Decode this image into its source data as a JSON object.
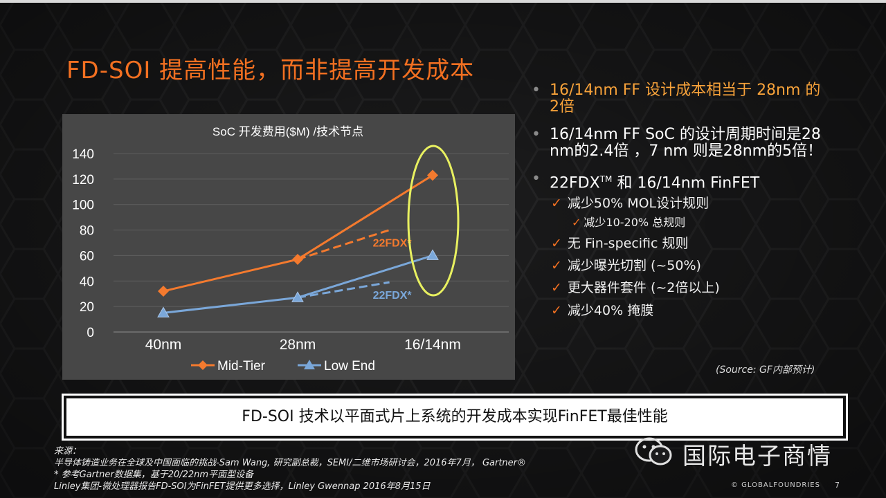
{
  "slide": {
    "title": "FD-SOI 提高性能，而非提高开发成本",
    "source_note": "(Source: GF内部预计)",
    "banner": "FD-SOI 技术以平面式片上系统的开发成本实现FinFET最佳性能",
    "footnotes": [
      "来源：",
      "半导体铸造业务在全球及中国面临的挑战-Sam Wang, 研究副总裁，SEMI/二维市场研讨会，2016年7月， Gartner®",
      " * 参考Gartner数据集，基于20/22nm平面型设备",
      "Linley集团-微处理器报告FD-SOI为FinFET提供更多选择，Linley Gwennap 2016年8月15日"
    ],
    "wechat_name": "国际电子商情",
    "copyright": "© GLOBALFOUNDRIES",
    "page_number": "7"
  },
  "bullets": {
    "b1": "16/14nm FF 设计成本相当于 28nm 的",
    "b1_cont": "2倍",
    "b2": "16/14nm FF SoC 的设计周期时间是28",
    "b2_cont": "nm的2.4倍 ，7 nm 则是28nm的5倍！",
    "b3_pre": "22FDX",
    "b3_sup": "TM",
    "b3_post": " 和 16/14nm FinFET",
    "sub": [
      "减少50% MOL设计规则",
      "减少10-20% 总规则",
      "无 Fin-specific 规则",
      "减少曝光切割 (~50%)",
      "更大器件套件 (~2倍以上)",
      "减少40% 掩膜"
    ]
  },
  "chart_data": {
    "type": "line",
    "title": "SoC 开发费用($M) /技术节点",
    "categories": [
      "40nm",
      "28nm",
      "16/14nm"
    ],
    "yticks": [
      "0",
      "20",
      "40",
      "60",
      "80",
      "100",
      "120",
      "140"
    ],
    "ylim": [
      0,
      140
    ],
    "series": [
      {
        "name": "Mid-Tier",
        "values": [
          32,
          57,
          123
        ],
        "color": "#f47a2e"
      },
      {
        "name": "Low End",
        "values": [
          15,
          27,
          60
        ],
        "color": "#7aa7d9"
      }
    ],
    "projections": [
      {
        "label": "22FDX*",
        "from": [
          1,
          57
        ],
        "to": [
          1.68,
          80
        ],
        "color": "#f47a2e"
      },
      {
        "label": "22FDX*",
        "from": [
          1,
          27
        ],
        "to": [
          1.68,
          39
        ],
        "color": "#7aa7d9"
      }
    ],
    "legend_position": "bottom",
    "highlight": "ellipse around 16/14nm",
    "highlight_color": "#e8f060"
  }
}
